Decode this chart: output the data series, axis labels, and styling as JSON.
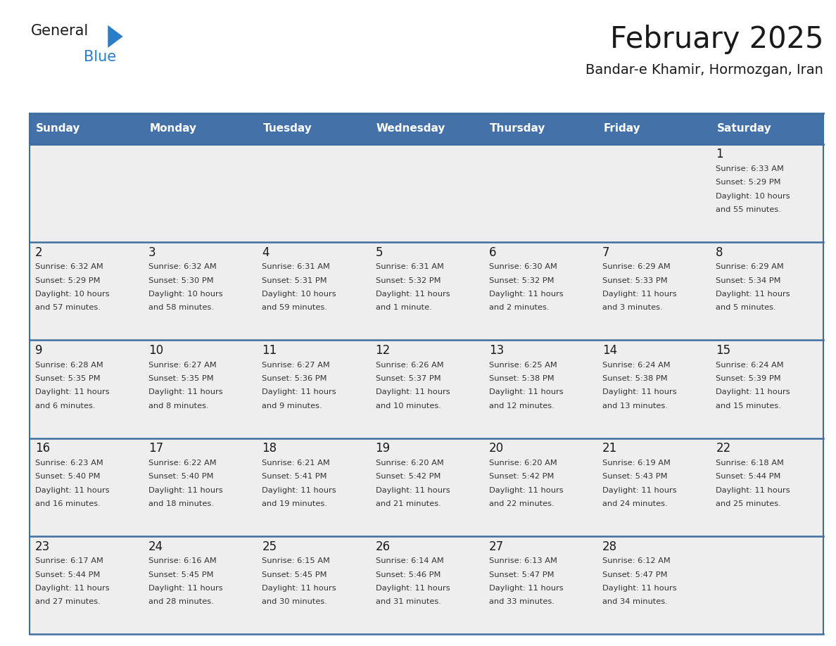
{
  "title": "February 2025",
  "subtitle": "Bandar-e Khamir, Hormozgan, Iran",
  "days_of_week": [
    "Sunday",
    "Monday",
    "Tuesday",
    "Wednesday",
    "Thursday",
    "Friday",
    "Saturday"
  ],
  "header_bg": "#4472a8",
  "header_text": "#ffffff",
  "row_bg": "#eeeeee",
  "cell_text": "#333333",
  "day_num_color": "#1a1a1a",
  "border_color": "#3d6ea0",
  "separator_color": "#3d6ea0",
  "logo_color_general": "#1a1a1a",
  "logo_color_blue": "#2a7dc9",
  "triangle_color": "#2a7dc9",
  "title_color": "#1a1a1a",
  "calendar": [
    [
      null,
      null,
      null,
      null,
      null,
      null,
      {
        "day": "1",
        "sunrise": "6:33 AM",
        "sunset": "5:29 PM",
        "daylight": "10 hours",
        "daylight2": "and 55 minutes."
      }
    ],
    [
      {
        "day": "2",
        "sunrise": "6:32 AM",
        "sunset": "5:29 PM",
        "daylight": "10 hours",
        "daylight2": "and 57 minutes."
      },
      {
        "day": "3",
        "sunrise": "6:32 AM",
        "sunset": "5:30 PM",
        "daylight": "10 hours",
        "daylight2": "and 58 minutes."
      },
      {
        "day": "4",
        "sunrise": "6:31 AM",
        "sunset": "5:31 PM",
        "daylight": "10 hours",
        "daylight2": "and 59 minutes."
      },
      {
        "day": "5",
        "sunrise": "6:31 AM",
        "sunset": "5:32 PM",
        "daylight": "11 hours",
        "daylight2": "and 1 minute."
      },
      {
        "day": "6",
        "sunrise": "6:30 AM",
        "sunset": "5:32 PM",
        "daylight": "11 hours",
        "daylight2": "and 2 minutes."
      },
      {
        "day": "7",
        "sunrise": "6:29 AM",
        "sunset": "5:33 PM",
        "daylight": "11 hours",
        "daylight2": "and 3 minutes."
      },
      {
        "day": "8",
        "sunrise": "6:29 AM",
        "sunset": "5:34 PM",
        "daylight": "11 hours",
        "daylight2": "and 5 minutes."
      }
    ],
    [
      {
        "day": "9",
        "sunrise": "6:28 AM",
        "sunset": "5:35 PM",
        "daylight": "11 hours",
        "daylight2": "and 6 minutes."
      },
      {
        "day": "10",
        "sunrise": "6:27 AM",
        "sunset": "5:35 PM",
        "daylight": "11 hours",
        "daylight2": "and 8 minutes."
      },
      {
        "day": "11",
        "sunrise": "6:27 AM",
        "sunset": "5:36 PM",
        "daylight": "11 hours",
        "daylight2": "and 9 minutes."
      },
      {
        "day": "12",
        "sunrise": "6:26 AM",
        "sunset": "5:37 PM",
        "daylight": "11 hours",
        "daylight2": "and 10 minutes."
      },
      {
        "day": "13",
        "sunrise": "6:25 AM",
        "sunset": "5:38 PM",
        "daylight": "11 hours",
        "daylight2": "and 12 minutes."
      },
      {
        "day": "14",
        "sunrise": "6:24 AM",
        "sunset": "5:38 PM",
        "daylight": "11 hours",
        "daylight2": "and 13 minutes."
      },
      {
        "day": "15",
        "sunrise": "6:24 AM",
        "sunset": "5:39 PM",
        "daylight": "11 hours",
        "daylight2": "and 15 minutes."
      }
    ],
    [
      {
        "day": "16",
        "sunrise": "6:23 AM",
        "sunset": "5:40 PM",
        "daylight": "11 hours",
        "daylight2": "and 16 minutes."
      },
      {
        "day": "17",
        "sunrise": "6:22 AM",
        "sunset": "5:40 PM",
        "daylight": "11 hours",
        "daylight2": "and 18 minutes."
      },
      {
        "day": "18",
        "sunrise": "6:21 AM",
        "sunset": "5:41 PM",
        "daylight": "11 hours",
        "daylight2": "and 19 minutes."
      },
      {
        "day": "19",
        "sunrise": "6:20 AM",
        "sunset": "5:42 PM",
        "daylight": "11 hours",
        "daylight2": "and 21 minutes."
      },
      {
        "day": "20",
        "sunrise": "6:20 AM",
        "sunset": "5:42 PM",
        "daylight": "11 hours",
        "daylight2": "and 22 minutes."
      },
      {
        "day": "21",
        "sunrise": "6:19 AM",
        "sunset": "5:43 PM",
        "daylight": "11 hours",
        "daylight2": "and 24 minutes."
      },
      {
        "day": "22",
        "sunrise": "6:18 AM",
        "sunset": "5:44 PM",
        "daylight": "11 hours",
        "daylight2": "and 25 minutes."
      }
    ],
    [
      {
        "day": "23",
        "sunrise": "6:17 AM",
        "sunset": "5:44 PM",
        "daylight": "11 hours",
        "daylight2": "and 27 minutes."
      },
      {
        "day": "24",
        "sunrise": "6:16 AM",
        "sunset": "5:45 PM",
        "daylight": "11 hours",
        "daylight2": "and 28 minutes."
      },
      {
        "day": "25",
        "sunrise": "6:15 AM",
        "sunset": "5:45 PM",
        "daylight": "11 hours",
        "daylight2": "and 30 minutes."
      },
      {
        "day": "26",
        "sunrise": "6:14 AM",
        "sunset": "5:46 PM",
        "daylight": "11 hours",
        "daylight2": "and 31 minutes."
      },
      {
        "day": "27",
        "sunrise": "6:13 AM",
        "sunset": "5:47 PM",
        "daylight": "11 hours",
        "daylight2": "and 33 minutes."
      },
      {
        "day": "28",
        "sunrise": "6:12 AM",
        "sunset": "5:47 PM",
        "daylight": "11 hours",
        "daylight2": "and 34 minutes."
      },
      null
    ]
  ]
}
